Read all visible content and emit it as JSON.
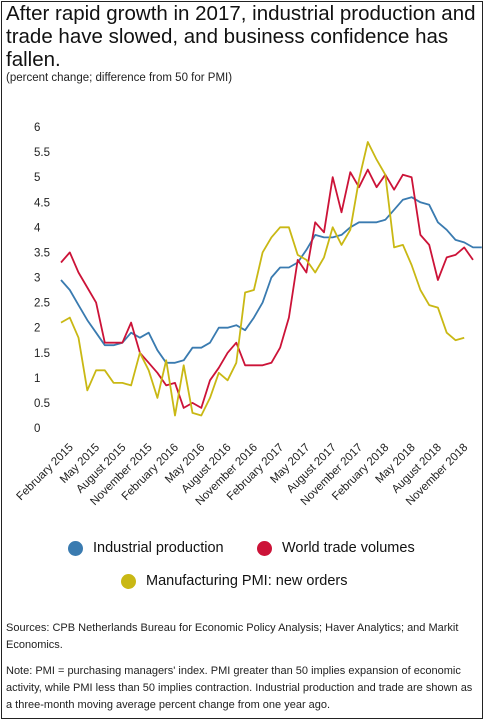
{
  "title": "After rapid growth in 2017, industrial production and trade have slowed, and business confidence has fallen.",
  "subtitle": "(percent change; difference from 50 for PMI)",
  "sources": "Sources: CPB Netherlands Bureau for Economic Policy Analysis; Haver Analytics; and Markit Economics.",
  "note": "Note: PMI = purchasing managers' index. PMI greater than 50 implies expansion of economic activity, while PMI less than 50 implies contraction. Industrial production and trade are shown as a three-month moving average percent change from one year ago.",
  "chart_data": {
    "type": "line",
    "x_tick_labels": [
      "February 2015",
      "May 2015",
      "August 2015",
      "November 2015",
      "February 2016",
      "May 2016",
      "August 2016",
      "November 2016",
      "February 2017",
      "May 2017",
      "August 2017",
      "November 2017",
      "February 2018",
      "May 2018",
      "August 2018",
      "November 2018"
    ],
    "months_start": "2015-01",
    "y_ticks": [
      "0",
      "0.5",
      "1",
      "1.5",
      "2",
      "2.5",
      "3",
      "3.5",
      "4",
      "4.5",
      "5",
      "5.5",
      "6"
    ],
    "ylim": [
      0,
      6
    ],
    "grid": false,
    "legend_position": "bottom",
    "series": [
      {
        "name": "Industrial production",
        "color": "#3a7bb0",
        "values": [
          2.95,
          2.75,
          2.45,
          2.15,
          1.9,
          1.65,
          1.65,
          1.7,
          1.9,
          1.8,
          1.9,
          1.55,
          1.3,
          1.3,
          1.35,
          1.6,
          1.6,
          1.7,
          2.0,
          2.0,
          2.05,
          1.95,
          2.2,
          2.5,
          3.0,
          3.2,
          3.2,
          3.3,
          3.55,
          3.85,
          3.8,
          3.8,
          3.85,
          4.0,
          4.1,
          4.1,
          4.1,
          4.15,
          4.35,
          4.55,
          4.6,
          4.5,
          4.45,
          4.1,
          3.95,
          3.75,
          3.7,
          3.6,
          3.6
        ]
      },
      {
        "name": "World trade volumes",
        "color": "#cc1338",
        "values": [
          3.3,
          3.5,
          3.1,
          2.8,
          2.5,
          1.7,
          1.7,
          1.7,
          2.1,
          1.5,
          1.3,
          1.1,
          0.85,
          0.9,
          0.4,
          0.5,
          0.4,
          0.95,
          1.2,
          1.5,
          1.7,
          1.25,
          1.25,
          1.25,
          1.3,
          1.6,
          2.2,
          3.35,
          3.1,
          4.1,
          3.9,
          5.0,
          4.3,
          5.1,
          4.8,
          5.15,
          4.8,
          5.05,
          4.75,
          5.05,
          5.0,
          3.85,
          3.65,
          2.95,
          3.4,
          3.45,
          3.6,
          3.35
        ]
      },
      {
        "name": "Manufacturing PMI: new orders",
        "color": "#c9b814",
        "values": [
          2.1,
          2.2,
          1.8,
          0.75,
          1.15,
          1.15,
          0.9,
          0.9,
          0.85,
          1.5,
          1.15,
          0.6,
          1.35,
          0.25,
          1.25,
          0.3,
          0.25,
          0.6,
          1.1,
          0.95,
          1.3,
          2.7,
          2.75,
          3.5,
          3.8,
          4.0,
          4.0,
          3.45,
          3.35,
          3.1,
          3.4,
          4.0,
          3.65,
          3.95,
          4.95,
          5.7,
          5.35,
          5.05,
          3.6,
          3.65,
          3.25,
          2.75,
          2.45,
          2.4,
          1.9,
          1.75,
          1.8
        ]
      }
    ]
  }
}
